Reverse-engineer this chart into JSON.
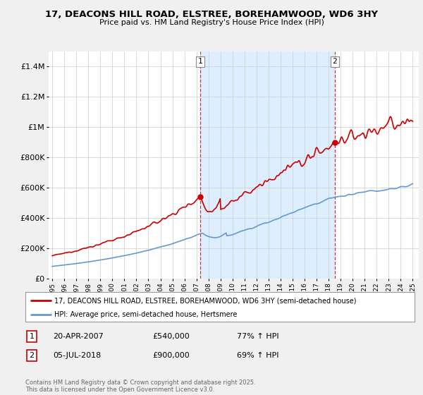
{
  "title": "17, DEACONS HILL ROAD, ELSTREE, BOREHAMWOOD, WD6 3HY",
  "subtitle": "Price paid vs. HM Land Registry's House Price Index (HPI)",
  "legend_line1": "17, DEACONS HILL ROAD, ELSTREE, BOREHAMWOOD, WD6 3HY (semi-detached house)",
  "legend_line2": "HPI: Average price, semi-detached house, Hertsmere",
  "annotation1_label": "1",
  "annotation1_date": "20-APR-2007",
  "annotation1_price": "£540,000",
  "annotation1_hpi": "77% ↑ HPI",
  "annotation2_label": "2",
  "annotation2_date": "05-JUL-2018",
  "annotation2_price": "£900,000",
  "annotation2_hpi": "69% ↑ HPI",
  "footer": "Contains HM Land Registry data © Crown copyright and database right 2025.\nThis data is licensed under the Open Government Licence v3.0.",
  "red_color": "#cc0000",
  "blue_color": "#6699cc",
  "shade_color": "#ddeeff",
  "annotation_vline_color": "#cc3333",
  "background_color": "#f0f0f0",
  "plot_bg_color": "#ffffff",
  "grid_color": "#cccccc",
  "year_start": 1995,
  "year_end": 2025,
  "ylim": [
    0,
    1500000
  ],
  "yticks": [
    0,
    200000,
    400000,
    600000,
    800000,
    1000000,
    1200000,
    1400000
  ],
  "ytick_labels": [
    "£0",
    "£200K",
    "£400K",
    "£600K",
    "£800K",
    "£1M",
    "£1.2M",
    "£1.4M"
  ],
  "sale1_year": 2007.31,
  "sale1_price": 540000,
  "sale2_year": 2018.51,
  "sale2_price": 900000
}
